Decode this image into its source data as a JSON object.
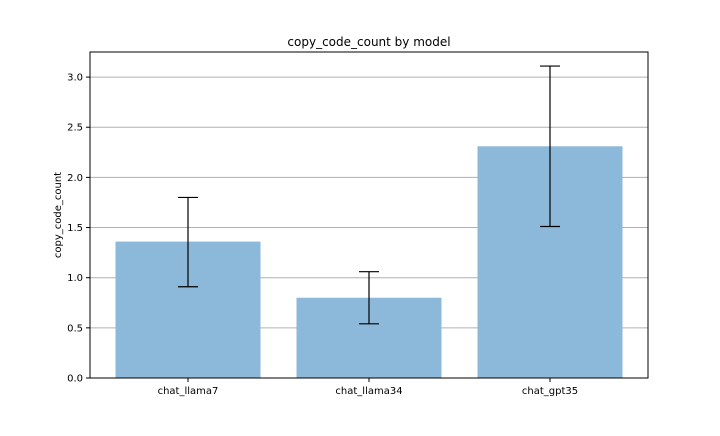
{
  "chart_data": {
    "type": "bar",
    "title": "copy_code_count by model",
    "xlabel": "",
    "ylabel": "copy_code_count",
    "categories": [
      "chat_llama7",
      "chat_llama34",
      "chat_gpt35"
    ],
    "values": [
      1.36,
      0.8,
      2.31
    ],
    "error_low": [
      0.91,
      0.54,
      1.51
    ],
    "error_high": [
      1.8,
      1.06,
      3.11
    ],
    "ylim": [
      0,
      3.25
    ],
    "yticks": [
      0.0,
      0.5,
      1.0,
      1.5,
      2.0,
      2.5,
      3.0
    ],
    "ytick_labels": [
      "0.0",
      "0.5",
      "1.0",
      "1.5",
      "2.0",
      "2.5",
      "3.0"
    ],
    "grid": "y",
    "legend": "none",
    "colors": {
      "bar": "#8cb8d9",
      "grid": "#b0b0b0",
      "axis": "#000000",
      "error": "#000000"
    }
  }
}
